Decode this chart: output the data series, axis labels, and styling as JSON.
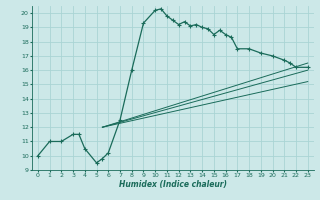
{
  "xlabel": "Humidex (Indice chaleur)",
  "bg_color": "#cce8e8",
  "grid_color": "#aad4d4",
  "line_color": "#1a6b5a",
  "xlim": [
    -0.5,
    23.5
  ],
  "ylim": [
    9,
    20.5
  ],
  "xticks": [
    0,
    1,
    2,
    3,
    4,
    5,
    6,
    7,
    8,
    9,
    10,
    11,
    12,
    13,
    14,
    15,
    16,
    17,
    18,
    19,
    20,
    21,
    22,
    23
  ],
  "yticks": [
    9,
    10,
    11,
    12,
    13,
    14,
    15,
    16,
    17,
    18,
    19,
    20
  ],
  "main_curve_x": [
    0,
    1,
    2,
    3,
    3.5,
    4,
    5,
    5.5,
    6,
    7,
    8,
    9,
    10,
    10.5,
    11,
    11.5,
    12,
    12.5,
    13,
    13.5,
    14,
    14.5,
    15,
    15.5,
    16,
    16.5,
    17,
    18,
    19,
    20,
    21,
    21.5,
    22,
    23
  ],
  "main_curve_y": [
    10,
    11,
    11,
    11.5,
    11.5,
    10.5,
    9.5,
    9.8,
    10.2,
    12.5,
    16,
    19.3,
    20.2,
    20.3,
    19.8,
    19.5,
    19.2,
    19.4,
    19.1,
    19.2,
    19.0,
    18.9,
    18.5,
    18.8,
    18.5,
    18.3,
    17.5,
    17.5,
    17.2,
    17.0,
    16.7,
    16.5,
    16.2,
    16.2
  ],
  "line1_x": [
    5.5,
    23
  ],
  "line1_y": [
    12.0,
    16.0
  ],
  "line2_x": [
    5.5,
    23
  ],
  "line2_y": [
    12.0,
    16.5
  ],
  "line3_x": [
    5.5,
    23
  ],
  "line3_y": [
    12.0,
    15.2
  ]
}
